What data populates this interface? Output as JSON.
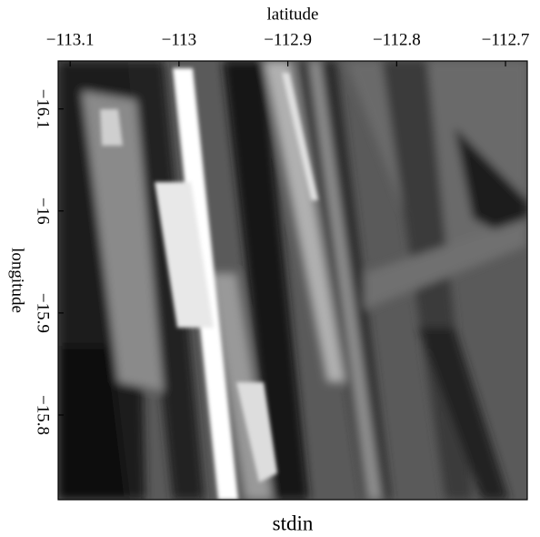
{
  "chart_data": {
    "type": "image",
    "title": "stdin",
    "xlabel": "latitude",
    "ylabel": "longitude",
    "xlim": [
      -113.111,
      -112.68
    ],
    "xticks": [
      {
        "value": -113.1,
        "label": "−113.1"
      },
      {
        "value": -113,
        "label": "−113"
      },
      {
        "value": -112.9,
        "label": "−112.9"
      },
      {
        "value": -112.8,
        "label": "−112.8"
      },
      {
        "value": -112.7,
        "label": "−112.7"
      }
    ],
    "ylim": [
      -16.147,
      -15.717
    ],
    "y_inverted": true,
    "yticks": [
      {
        "value": -16.1,
        "label": "−16.1"
      },
      {
        "value": -16,
        "label": "−16"
      },
      {
        "value": -15.9,
        "label": "−15.9"
      },
      {
        "value": -15.8,
        "label": "−15.8"
      }
    ],
    "colormap": "gray"
  }
}
